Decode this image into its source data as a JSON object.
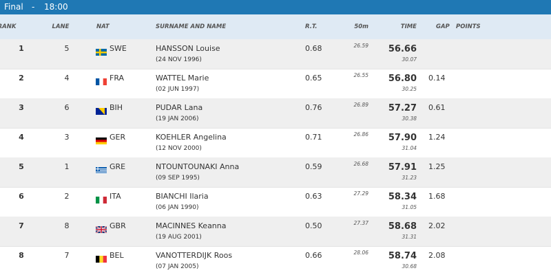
{
  "header": {
    "title": "Final",
    "separator": "-",
    "time": "18:00"
  },
  "columns": [
    "RANK",
    "LANE",
    "NAT",
    "SURNAME AND NAME",
    "R.T.",
    "50m",
    "TIME",
    "GAP",
    "POINTS"
  ],
  "rows": [
    {
      "rank": "1",
      "lane": "5",
      "nat": "SWE",
      "name": "HANSSON Louise",
      "dob": "(24 NOV 1996)",
      "rt": "0.68",
      "split50": "26.59",
      "time": "56.66",
      "split_time": "30.07"
    },
    {
      "rank": "2",
      "lane": "4",
      "nat": "FRA",
      "name": "WATTEL Marie",
      "dob": "(02 JUN 1997)",
      "rt": "0.65",
      "split50": "26.55",
      "time": "56.80",
      "split_time": "30.25",
      "gap": "0.14"
    },
    {
      "rank": "3",
      "lane": "6",
      "nat": "BIH",
      "name": "PUDAR Lana",
      "dob": "(19 JAN 2006)",
      "rt": "0.76",
      "split50": "26.89",
      "time": "57.27",
      "split_time": "30.38",
      "gap": "0.61"
    },
    {
      "rank": "4",
      "lane": "3",
      "nat": "GER",
      "name": "KOEHLER Angelina",
      "dob": "(12 NOV 2000)",
      "rt": "0.71",
      "split50": "26.86",
      "time": "57.90",
      "split_time": "31.04",
      "gap": "1.24"
    },
    {
      "rank": "5",
      "lane": "1",
      "nat": "GRE",
      "name": "NTOUNTOUNAKI Anna",
      "dob": "(09 SEP 1995)",
      "rt": "0.59",
      "split50": "26.68",
      "time": "57.91",
      "split_time": "31.23",
      "gap": "1.25"
    },
    {
      "rank": "6",
      "lane": "2",
      "nat": "ITA",
      "name": "BIANCHI Ilaria",
      "dob": "(06 JAN 1990)",
      "rt": "0.63",
      "split50": "27.29",
      "time": "58.34",
      "split_time": "31.05",
      "gap": "1.68"
    },
    {
      "rank": "7",
      "lane": "8",
      "nat": "GBR",
      "name": "MACINNES Keanna",
      "dob": "(19 AUG 2001)",
      "rt": "0.50",
      "split50": "27.37",
      "time": "58.68",
      "split_time": "31.31",
      "gap": "2.02"
    },
    {
      "rank": "8",
      "lane": "7",
      "nat": "BEL",
      "name": "VANOTTERDIJK Roos",
      "dob": "(07 JAN 2005)",
      "rt": "0.66",
      "split50": "28.06",
      "time": "58.74",
      "split_time": "30.68",
      "gap": "2.08"
    }
  ]
}
